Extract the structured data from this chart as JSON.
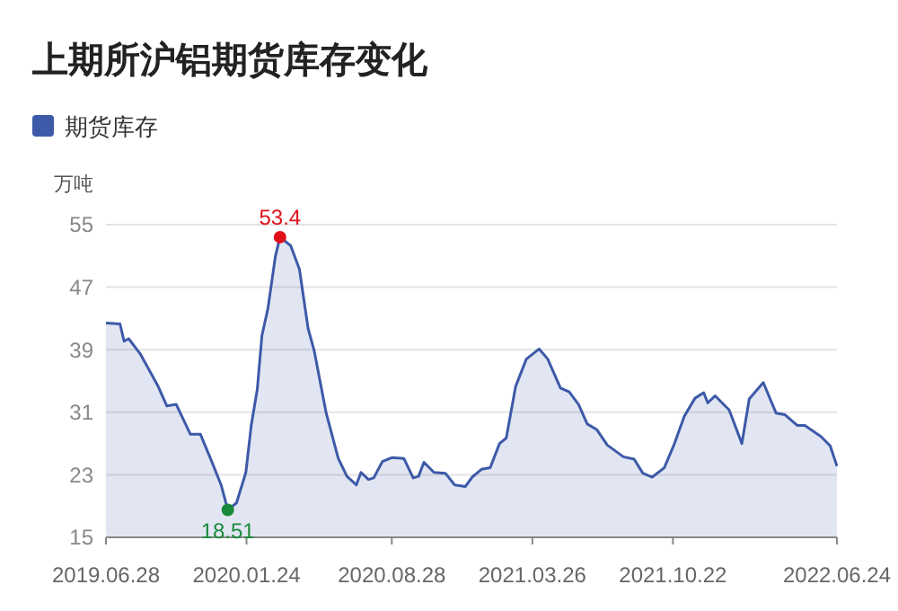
{
  "chart_data": {
    "type": "area",
    "title": "上期所沪铝期货库存变化",
    "ylabel": "万吨",
    "legend": "top left",
    "grid": "y",
    "xlim": [
      "2019-06-28",
      "2022-06-24"
    ],
    "xticks": [
      {
        "value": "2019-06-28",
        "label": "2019.06.28"
      },
      {
        "value": "2020-01-24",
        "label": "2020.01.24"
      },
      {
        "value": "2020-08-28",
        "label": "2020.08.28"
      },
      {
        "value": "2021-03-26",
        "label": "2021.03.26"
      },
      {
        "value": "2021-10-22",
        "label": "2021.10.22"
      },
      {
        "value": "2022-06-24",
        "label": "2022.06.24"
      }
    ],
    "ylim": [
      15,
      55
    ],
    "yticks": [
      15,
      23,
      31,
      39,
      47,
      55
    ],
    "x": [
      "2019-06-28",
      "2019-07-19",
      "2019-07-25",
      "2019-08-01",
      "2019-08-18",
      "2019-09-14",
      "2019-09-27",
      "2019-10-11",
      "2019-11-01",
      "2019-11-16",
      "2019-12-03",
      "2019-12-17",
      "2019-12-27",
      "2020-01-09",
      "2020-01-23",
      "2020-01-31",
      "2020-02-09",
      "2020-02-16",
      "2020-02-25",
      "2020-03-07",
      "2020-03-14",
      "2020-03-30",
      "2020-04-12",
      "2020-04-25",
      "2020-05-04",
      "2020-05-22",
      "2020-06-09",
      "2020-06-22",
      "2020-07-06",
      "2020-07-13",
      "2020-07-24",
      "2020-08-01",
      "2020-08-14",
      "2020-08-28",
      "2020-09-15",
      "2020-09-29",
      "2020-10-07",
      "2020-10-15",
      "2020-10-30",
      "2020-11-16",
      "2020-11-30",
      "2020-12-16",
      "2020-12-26",
      "2021-01-09",
      "2021-01-22",
      "2021-02-05",
      "2021-02-15",
      "2021-03-01",
      "2021-03-17",
      "2021-04-05",
      "2021-04-18",
      "2021-05-07",
      "2021-05-20",
      "2021-06-03",
      "2021-06-16",
      "2021-06-30",
      "2021-07-16",
      "2021-08-09",
      "2021-08-25",
      "2021-09-07",
      "2021-09-21",
      "2021-10-09",
      "2021-10-23",
      "2021-11-08",
      "2021-11-24",
      "2021-12-07",
      "2021-12-13",
      "2021-12-24",
      "2022-01-14",
      "2022-02-02",
      "2022-02-13",
      "2022-03-06",
      "2022-03-25",
      "2022-04-07",
      "2022-04-26",
      "2022-05-07",
      "2022-05-31",
      "2022-06-14",
      "2022-06-24"
    ],
    "series": [
      {
        "name": "期货库存",
        "color": "#3d5aa8",
        "values": [
          42.4,
          42.3,
          40.1,
          40.4,
          38.5,
          34.3,
          31.8,
          32.0,
          28.2,
          28.2,
          24.7,
          21.7,
          18.51,
          19.4,
          23.3,
          29.3,
          33.9,
          40.8,
          44.3,
          50.9,
          53.4,
          52.3,
          49.3,
          41.7,
          38.9,
          30.9,
          25.1,
          22.8,
          21.7,
          23.3,
          22.4,
          22.6,
          24.7,
          25.2,
          25.1,
          22.6,
          22.8,
          24.6,
          23.3,
          23.2,
          21.7,
          21.5,
          22.7,
          23.7,
          23.9,
          27.0,
          27.7,
          34.3,
          37.8,
          39.1,
          37.8,
          34.1,
          33.6,
          32.0,
          29.5,
          28.8,
          26.8,
          25.3,
          25.0,
          23.2,
          22.7,
          23.9,
          26.7,
          30.5,
          32.8,
          33.5,
          32.2,
          33.1,
          31.3,
          27.0,
          32.7,
          34.8,
          30.9,
          30.7,
          29.3,
          29.3,
          27.9,
          26.7,
          24.1
        ]
      }
    ],
    "annotations": [
      {
        "text": "53.4",
        "x": "2020-03-14",
        "y": 53.4
      },
      {
        "text": "18.51",
        "x": "2019-12-27",
        "y": 18.51
      }
    ]
  }
}
